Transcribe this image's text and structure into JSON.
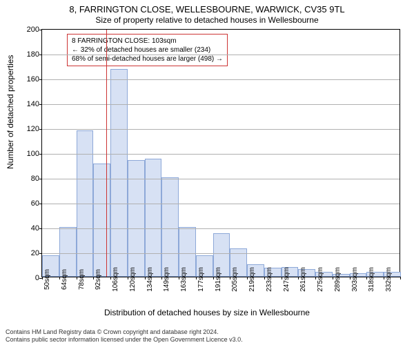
{
  "title": "8, FARRINGTON CLOSE, WELLESBOURNE, WARWICK, CV35 9TL",
  "subtitle": "Size of property relative to detached houses in Wellesbourne",
  "ylabel": "Number of detached properties",
  "xlabel": "Distribution of detached houses by size in Wellesbourne",
  "footer1": "Contains HM Land Registry data © Crown copyright and database right 2024.",
  "footer2": "Contains public sector information licensed under the Open Government Licence v3.0.",
  "chart": {
    "type": "histogram",
    "background_color": "#ffffff",
    "bar_fill": "#d7e1f4",
    "bar_stroke": "#8da8d8",
    "grid_color": "#b0b0b0",
    "axis_color": "#000000",
    "ref_line_color": "#cc3333",
    "title_fontsize": 13,
    "subtitle_fontsize": 12,
    "label_fontsize": 12,
    "tick_fontsize": 11,
    "xtick_fontsize": 10,
    "ymax": 200,
    "ytick_step": 20,
    "x_categories": [
      "50sqm",
      "64sqm",
      "78sqm",
      "92sqm",
      "106sqm",
      "120sqm",
      "134sqm",
      "149sqm",
      "163sqm",
      "177sqm",
      "191sqm",
      "205sqm",
      "219sqm",
      "233sqm",
      "247sqm",
      "261sqm",
      "275sqm",
      "289sqm",
      "303sqm",
      "318sqm",
      "332sqm"
    ],
    "values": [
      17,
      40,
      118,
      91,
      167,
      94,
      95,
      80,
      40,
      17,
      35,
      23,
      10,
      7,
      8,
      6,
      4,
      2,
      3,
      4,
      4
    ],
    "ref_x_index": 3.75,
    "info_lines": [
      "8 FARRINGTON CLOSE: 103sqm",
      "← 32% of detached houses are smaller (234)",
      "68% of semi-detached houses are larger (498) →"
    ]
  }
}
